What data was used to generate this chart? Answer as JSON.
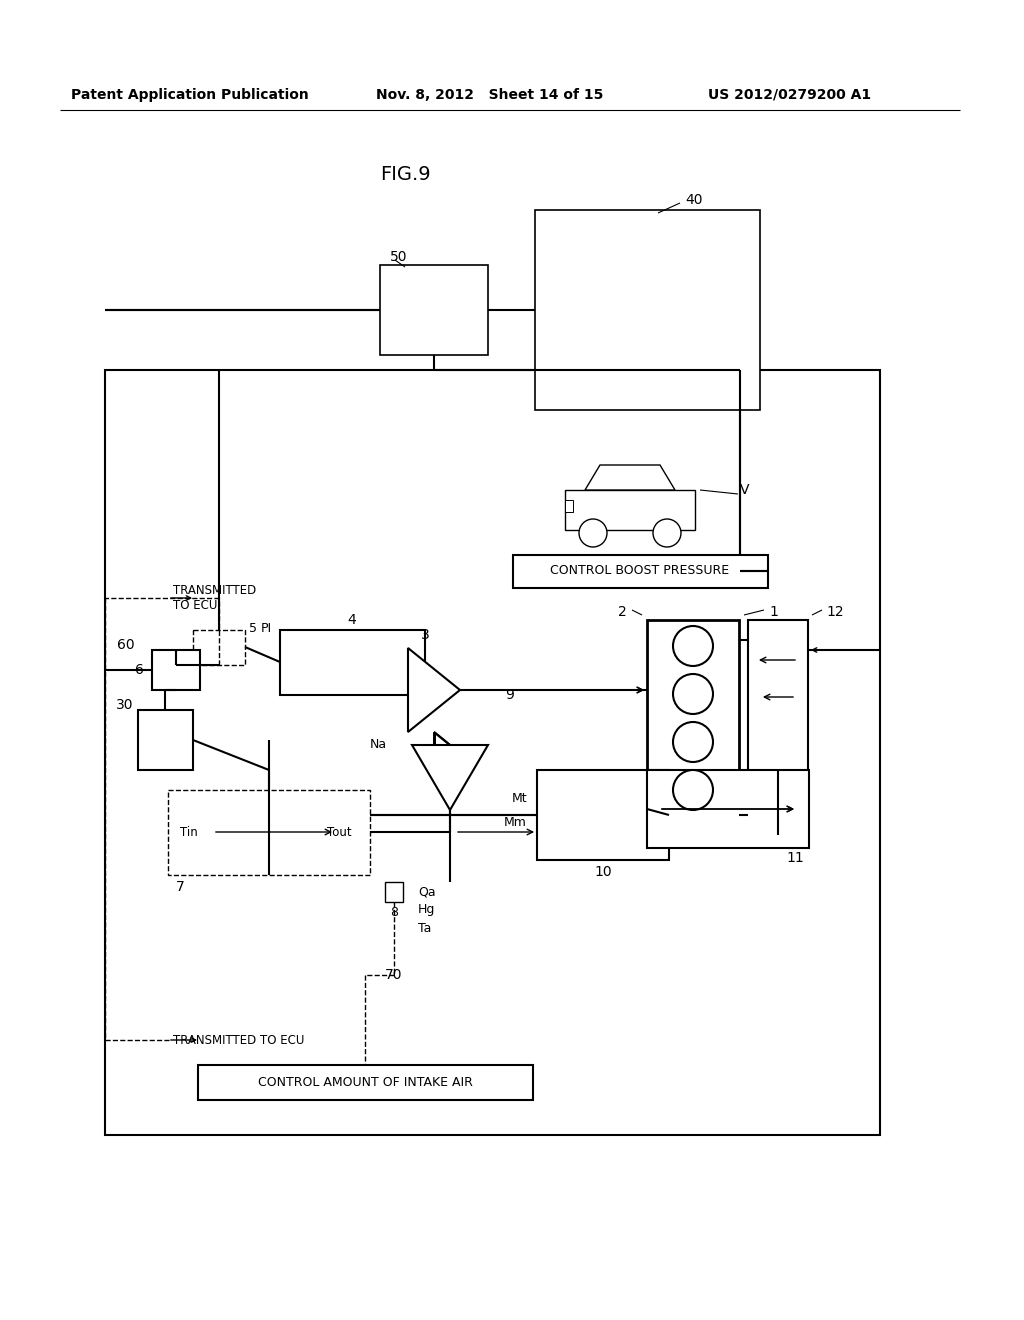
{
  "bg_color": "#ffffff",
  "header_left": "Patent Application Publication",
  "header_mid": "Nov. 8, 2012   Sheet 14 of 15",
  "header_right": "US 2012/0279200 A1",
  "fig_title": "FIG.9"
}
